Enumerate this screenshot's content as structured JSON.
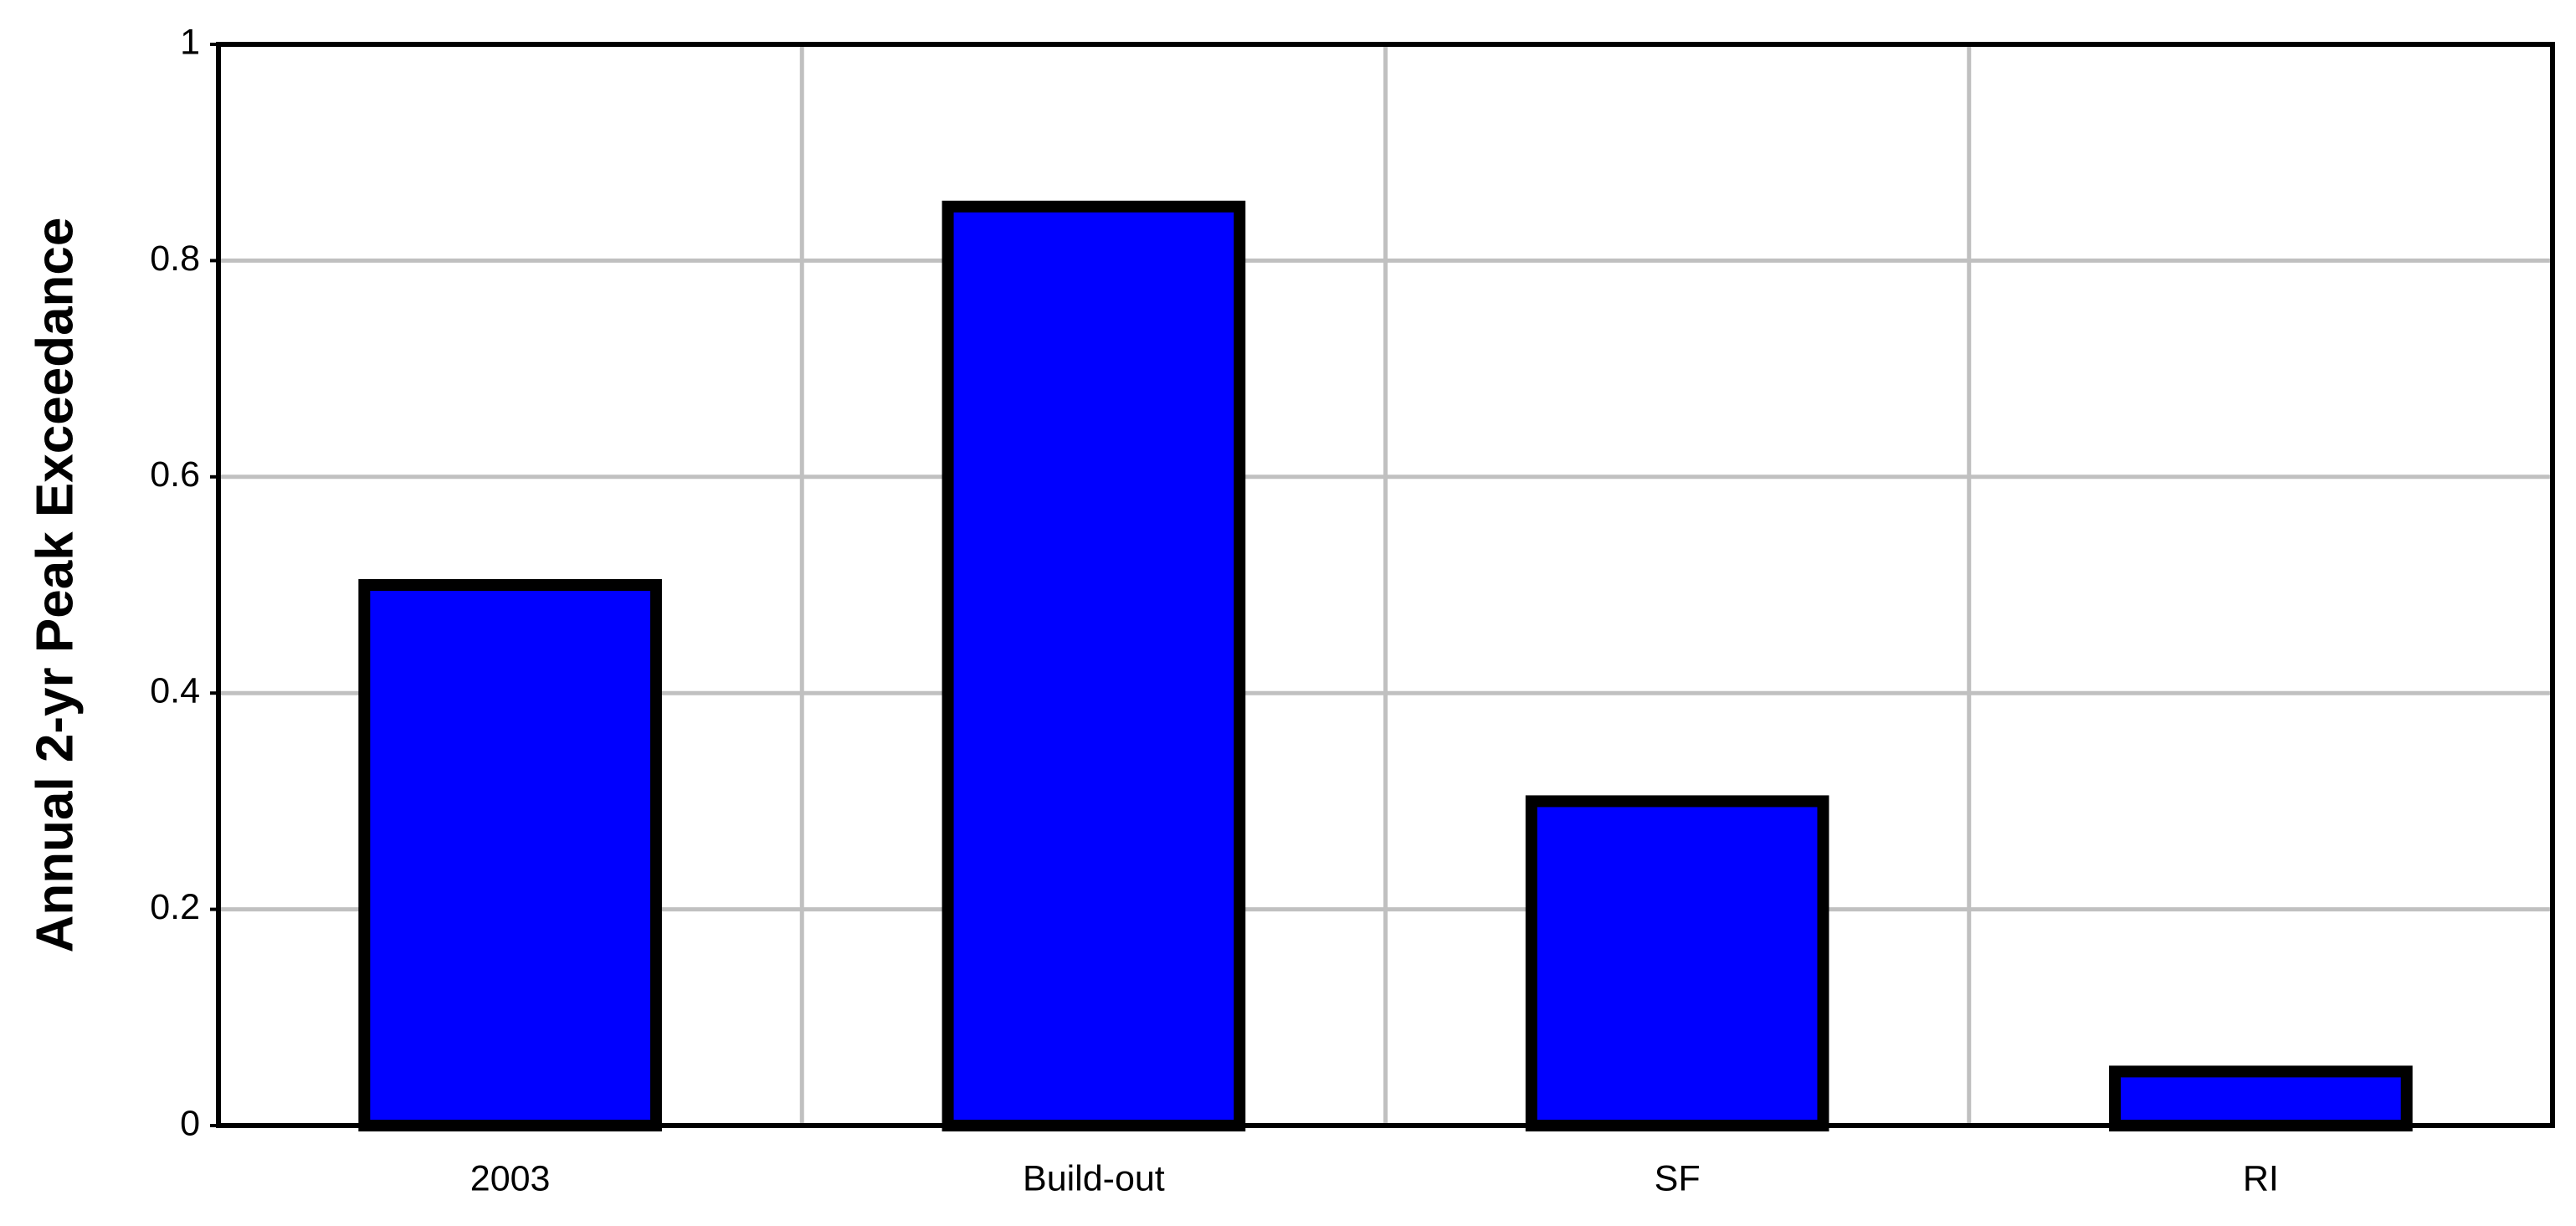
{
  "chart_data": {
    "type": "bar",
    "y_label": "Annual 2-yr Peak Exceedance",
    "categories": [
      "2003",
      "Build-out",
      "SF",
      "RI"
    ],
    "values": [
      0.5,
      0.85,
      0.3,
      0.05
    ],
    "color": "#0000ff",
    "ylim": [
      0,
      1
    ],
    "yticks": [
      0,
      0.2,
      0.4,
      0.6,
      0.8,
      1
    ],
    "grid": true
  }
}
